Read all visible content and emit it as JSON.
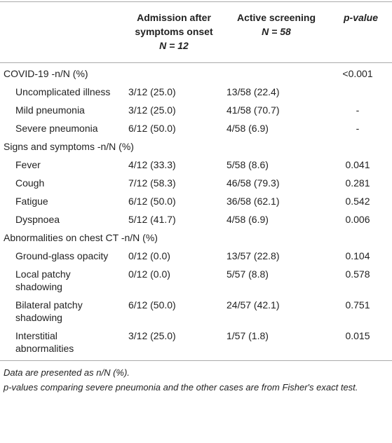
{
  "table": {
    "header": {
      "admission": {
        "title": "Admission after symptoms onset",
        "n": "N = 12"
      },
      "active": {
        "title": "Active screening",
        "n": "N = 58"
      },
      "p": "p-value"
    },
    "rows": [
      {
        "label": "COVID-19 -n/N (%)",
        "p": "<0.001"
      },
      {
        "label": "Uncomplicated illness",
        "admission": "3/12 (25.0)",
        "active": "13/58 (22.4)"
      },
      {
        "label": "Mild pneumonia",
        "admission": "3/12 (25.0)",
        "active": "41/58 (70.7)",
        "p": "-"
      },
      {
        "label": "Severe pneumonia",
        "admission": "6/12 (50.0)",
        "active": "4/58 (6.9)",
        "p": "-"
      },
      {
        "label": "Signs and symptoms -n/N (%)"
      },
      {
        "label": "Fever",
        "admission": "4/12 (33.3)",
        "active": "5/58 (8.6)",
        "p": "0.041"
      },
      {
        "label": "Cough",
        "admission": "7/12 (58.3)",
        "active": "46/58 (79.3)",
        "p": "0.281"
      },
      {
        "label": "Fatigue",
        "admission": "6/12 (50.0)",
        "active": "36/58 (62.1)",
        "p": "0.542"
      },
      {
        "label": "Dyspnoea",
        "admission": "5/12 (41.7)",
        "active": "4/58 (6.9)",
        "p": "0.006"
      },
      {
        "label": "Abnormalities on chest CT -n/N (%)"
      },
      {
        "label": "Ground-glass opacity",
        "admission": "0/12 (0.0)",
        "active": "13/57 (22.8)",
        "p": "0.104"
      },
      {
        "label": "Local patchy shadowing",
        "admission": "0/12 (0.0)",
        "active": "5/57 (8.8)",
        "p": "0.578"
      },
      {
        "label": "Bilateral patchy shadowing",
        "admission": "6/12 (50.0)",
        "active": "24/57 (42.1)",
        "p": "0.751"
      },
      {
        "label": "Interstitial abnormalities",
        "admission": "3/12 (25.0)",
        "active": "1/57 (1.8)",
        "p": "0.015"
      }
    ],
    "footnotes": [
      "Data are presented as n/N (%).",
      "p-values comparing severe pneumonia and the other cases are from Fisher's exact test."
    ]
  }
}
